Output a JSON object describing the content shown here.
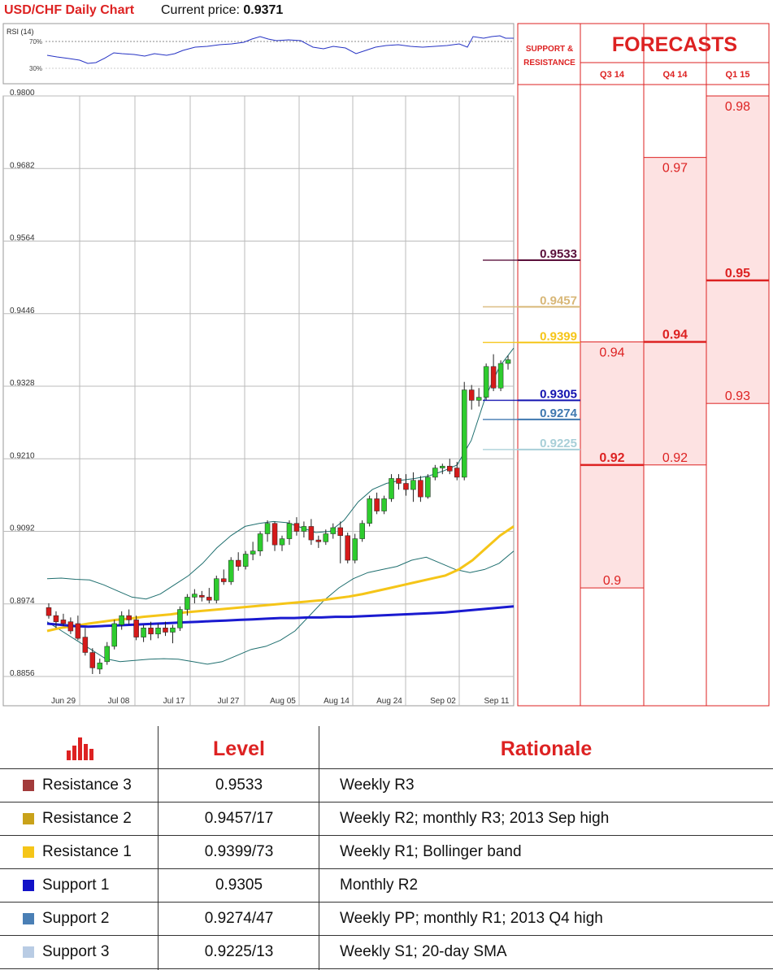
{
  "header": {
    "title": "USD/CHF Daily Chart",
    "price_label": "Current price:",
    "price_value": "0.9371"
  },
  "rsi": {
    "label": "RSI (14)",
    "levels": [
      "70%",
      "30%"
    ]
  },
  "chart_data": {
    "type": "candlestick",
    "ylim": [
      0.8856,
      0.98
    ],
    "ytick_labels": [
      "0.9800",
      "0.9682",
      "0.9564",
      "0.9446",
      "0.9328",
      "0.9210",
      "0.9092",
      "0.8974",
      "0.8856"
    ],
    "xtick_labels": [
      "Jun 29",
      "Jul 08",
      "Jul 17",
      "Jul 27",
      "Aug 05",
      "Aug 14",
      "Aug 24",
      "Sep 02",
      "Sep 11"
    ],
    "candles": [
      [
        0.8968,
        0.8975,
        0.895,
        0.8955
      ],
      [
        0.8955,
        0.8962,
        0.8935,
        0.8945
      ],
      [
        0.8948,
        0.8958,
        0.8938,
        0.8942
      ],
      [
        0.8945,
        0.8952,
        0.8925,
        0.893
      ],
      [
        0.8942,
        0.8955,
        0.8915,
        0.8918
      ],
      [
        0.892,
        0.8935,
        0.889,
        0.8895
      ],
      [
        0.8895,
        0.8902,
        0.886,
        0.887
      ],
      [
        0.8868,
        0.8885,
        0.886,
        0.8878
      ],
      [
        0.888,
        0.8912,
        0.8875,
        0.8905
      ],
      [
        0.8905,
        0.8948,
        0.89,
        0.8942
      ],
      [
        0.894,
        0.8962,
        0.8932,
        0.8955
      ],
      [
        0.8955,
        0.8965,
        0.894,
        0.8948
      ],
      [
        0.8948,
        0.8955,
        0.8915,
        0.892
      ],
      [
        0.892,
        0.894,
        0.8912,
        0.8935
      ],
      [
        0.8935,
        0.8945,
        0.8915,
        0.8925
      ],
      [
        0.8925,
        0.8942,
        0.8918,
        0.8935
      ],
      [
        0.8935,
        0.8945,
        0.8922,
        0.8928
      ],
      [
        0.8928,
        0.894,
        0.891,
        0.8935
      ],
      [
        0.8935,
        0.897,
        0.893,
        0.8965
      ],
      [
        0.8965,
        0.899,
        0.8955,
        0.8985
      ],
      [
        0.8985,
        0.8998,
        0.8975,
        0.899
      ],
      [
        0.8988,
        0.8995,
        0.8978,
        0.8985
      ],
      [
        0.8985,
        0.9,
        0.8975,
        0.898
      ],
      [
        0.898,
        0.902,
        0.8975,
        0.9015
      ],
      [
        0.9015,
        0.903,
        0.9005,
        0.901
      ],
      [
        0.901,
        0.905,
        0.9005,
        0.9045
      ],
      [
        0.9045,
        0.9058,
        0.9028,
        0.9035
      ],
      [
        0.9035,
        0.906,
        0.903,
        0.9055
      ],
      [
        0.9055,
        0.9075,
        0.9045,
        0.906
      ],
      [
        0.906,
        0.9092,
        0.9052,
        0.9088
      ],
      [
        0.9088,
        0.911,
        0.9075,
        0.9105
      ],
      [
        0.9105,
        0.9108,
        0.906,
        0.907
      ],
      [
        0.907,
        0.9085,
        0.906,
        0.908
      ],
      [
        0.908,
        0.911,
        0.907,
        0.9105
      ],
      [
        0.9105,
        0.9115,
        0.9085,
        0.9092
      ],
      [
        0.9092,
        0.9108,
        0.9082,
        0.91
      ],
      [
        0.91,
        0.9112,
        0.907,
        0.9078
      ],
      [
        0.9078,
        0.9085,
        0.9065,
        0.9075
      ],
      [
        0.9075,
        0.9095,
        0.907,
        0.9088
      ],
      [
        0.9088,
        0.9105,
        0.908,
        0.9098
      ],
      [
        0.9098,
        0.9108,
        0.904,
        0.9085
      ],
      [
        0.9085,
        0.909,
        0.904,
        0.9045
      ],
      [
        0.9045,
        0.9088,
        0.904,
        0.908
      ],
      [
        0.908,
        0.911,
        0.9075,
        0.9105
      ],
      [
        0.9105,
        0.915,
        0.91,
        0.9145
      ],
      [
        0.9145,
        0.9155,
        0.912,
        0.9125
      ],
      [
        0.9125,
        0.915,
        0.912,
        0.9145
      ],
      [
        0.9145,
        0.9185,
        0.914,
        0.9178
      ],
      [
        0.9178,
        0.9185,
        0.916,
        0.917
      ],
      [
        0.917,
        0.9185,
        0.915,
        0.916
      ],
      [
        0.916,
        0.9188,
        0.914,
        0.9175
      ],
      [
        0.9175,
        0.9182,
        0.914,
        0.9148
      ],
      [
        0.9148,
        0.9185,
        0.9145,
        0.918
      ],
      [
        0.918,
        0.92,
        0.9175,
        0.9195
      ],
      [
        0.9195,
        0.9202,
        0.9185,
        0.9198
      ],
      [
        0.9198,
        0.921,
        0.9185,
        0.919
      ],
      [
        0.9195,
        0.9205,
        0.9175,
        0.918
      ],
      [
        0.918,
        0.9335,
        0.9175,
        0.9322
      ],
      [
        0.9322,
        0.933,
        0.929,
        0.9305
      ],
      [
        0.9305,
        0.9325,
        0.9295,
        0.931
      ],
      [
        0.931,
        0.9365,
        0.9305,
        0.936
      ],
      [
        0.936,
        0.938,
        0.932,
        0.9325
      ],
      [
        0.9325,
        0.937,
        0.932,
        0.9365
      ],
      [
        0.9365,
        0.9378,
        0.9355,
        0.9371
      ]
    ],
    "sma_50": [
      0.893,
      0.8935,
      0.8938,
      0.8942,
      0.8945,
      0.8948,
      0.895,
      0.8953,
      0.8955,
      0.8957,
      0.896,
      0.8962,
      0.8964,
      0.8966,
      0.8968,
      0.897,
      0.8972,
      0.8974,
      0.8976,
      0.8978,
      0.898,
      0.8983,
      0.8986,
      0.899,
      0.8995,
      0.9,
      0.9005,
      0.901,
      0.9015,
      0.902,
      0.903,
      0.9045,
      0.9065,
      0.9085,
      0.91
    ],
    "sma_200": [
      0.8942,
      0.894,
      0.8938,
      0.8937,
      0.8938,
      0.8939,
      0.894,
      0.8941,
      0.8942,
      0.8943,
      0.8944,
      0.8945,
      0.8946,
      0.8947,
      0.8948,
      0.8949,
      0.895,
      0.8951,
      0.8951,
      0.8952,
      0.8952,
      0.8953,
      0.8953,
      0.8954,
      0.8955,
      0.8956,
      0.8957,
      0.8958,
      0.8959,
      0.896,
      0.8962,
      0.8964,
      0.8966,
      0.8968,
      0.897
    ],
    "bb_upper": [
      0.9015,
      0.9016,
      0.9014,
      0.9013,
      0.9005,
      0.8995,
      0.8985,
      0.8982,
      0.899,
      0.9005,
      0.902,
      0.904,
      0.9065,
      0.9085,
      0.91,
      0.9105,
      0.9108,
      0.9106,
      0.9098,
      0.909,
      0.9092,
      0.911,
      0.914,
      0.916,
      0.917,
      0.9175,
      0.9178,
      0.9182,
      0.919,
      0.92,
      0.924,
      0.931,
      0.936,
      0.939
    ],
    "bb_lower": [
      0.8945,
      0.893,
      0.8915,
      0.89,
      0.8885,
      0.888,
      0.8882,
      0.8884,
      0.8885,
      0.8884,
      0.888,
      0.8876,
      0.888,
      0.889,
      0.89,
      0.8905,
      0.8915,
      0.893,
      0.8955,
      0.898,
      0.9,
      0.9015,
      0.9025,
      0.903,
      0.9035,
      0.9045,
      0.905,
      0.904,
      0.903,
      0.9025,
      0.903,
      0.904,
      0.906
    ]
  },
  "support_resistance": {
    "header": "SUPPORT & RESISTANCE",
    "levels": [
      {
        "value": 0.9533,
        "label": "0.9533",
        "color": "#5a0f3a"
      },
      {
        "value": 0.9457,
        "label": "0.9457",
        "color": "#d8b777"
      },
      {
        "value": 0.9399,
        "label": "0.9399",
        "color": "#f5c518"
      },
      {
        "value": 0.9305,
        "label": "0.9305",
        "color": "#1313b0"
      },
      {
        "value": 0.9274,
        "label": "0.9274",
        "color": "#3f78b0"
      },
      {
        "value": 0.9225,
        "label": "0.9225",
        "color": "#a8cfd8"
      }
    ]
  },
  "forecasts": {
    "title": "FORECASTS",
    "columns": [
      {
        "label": "Q3 14",
        "high": 0.94,
        "median": 0.92,
        "low": 0.9,
        "high_label": "0.94",
        "median_label": "0.92",
        "low_label": "0.9"
      },
      {
        "label": "Q4 14",
        "high": 0.97,
        "median": 0.94,
        "low": 0.92,
        "high_label": "0.97",
        "median_label": "0.94",
        "low_label": "0.92"
      },
      {
        "label": "Q1 15",
        "high": 0.98,
        "median": 0.95,
        "low": 0.93,
        "high_label": "0.98",
        "median_label": "0.95",
        "low_label": "0.93"
      }
    ]
  },
  "table": {
    "col_level": "Level",
    "col_rationale": "Rationale",
    "rows": [
      {
        "name": "Resistance 3",
        "level": "0.9533",
        "rationale": "Weekly R3",
        "color": "#a23b3b"
      },
      {
        "name": "Resistance 2",
        "level": "0.9457/17",
        "rationale": "Weekly R2; monthly R3; 2013 Sep high",
        "color": "#c9a21a"
      },
      {
        "name": "Resistance 1",
        "level": "0.9399/73",
        "rationale": "Weekly R1; Bollinger band",
        "color": "#f5c518"
      },
      {
        "name": "Support 1",
        "level": "0.9305",
        "rationale": "Monthly R2",
        "color": "#1212c8"
      },
      {
        "name": "Support 2",
        "level": "0.9274/47",
        "rationale": "Weekly PP; monthly R1; 2013 Q4 high",
        "color": "#4a7fb5"
      },
      {
        "name": "Support 3",
        "level": "0.9225/13",
        "rationale": "Weekly S1; 20-day SMA",
        "color": "#b9cce4"
      }
    ]
  }
}
